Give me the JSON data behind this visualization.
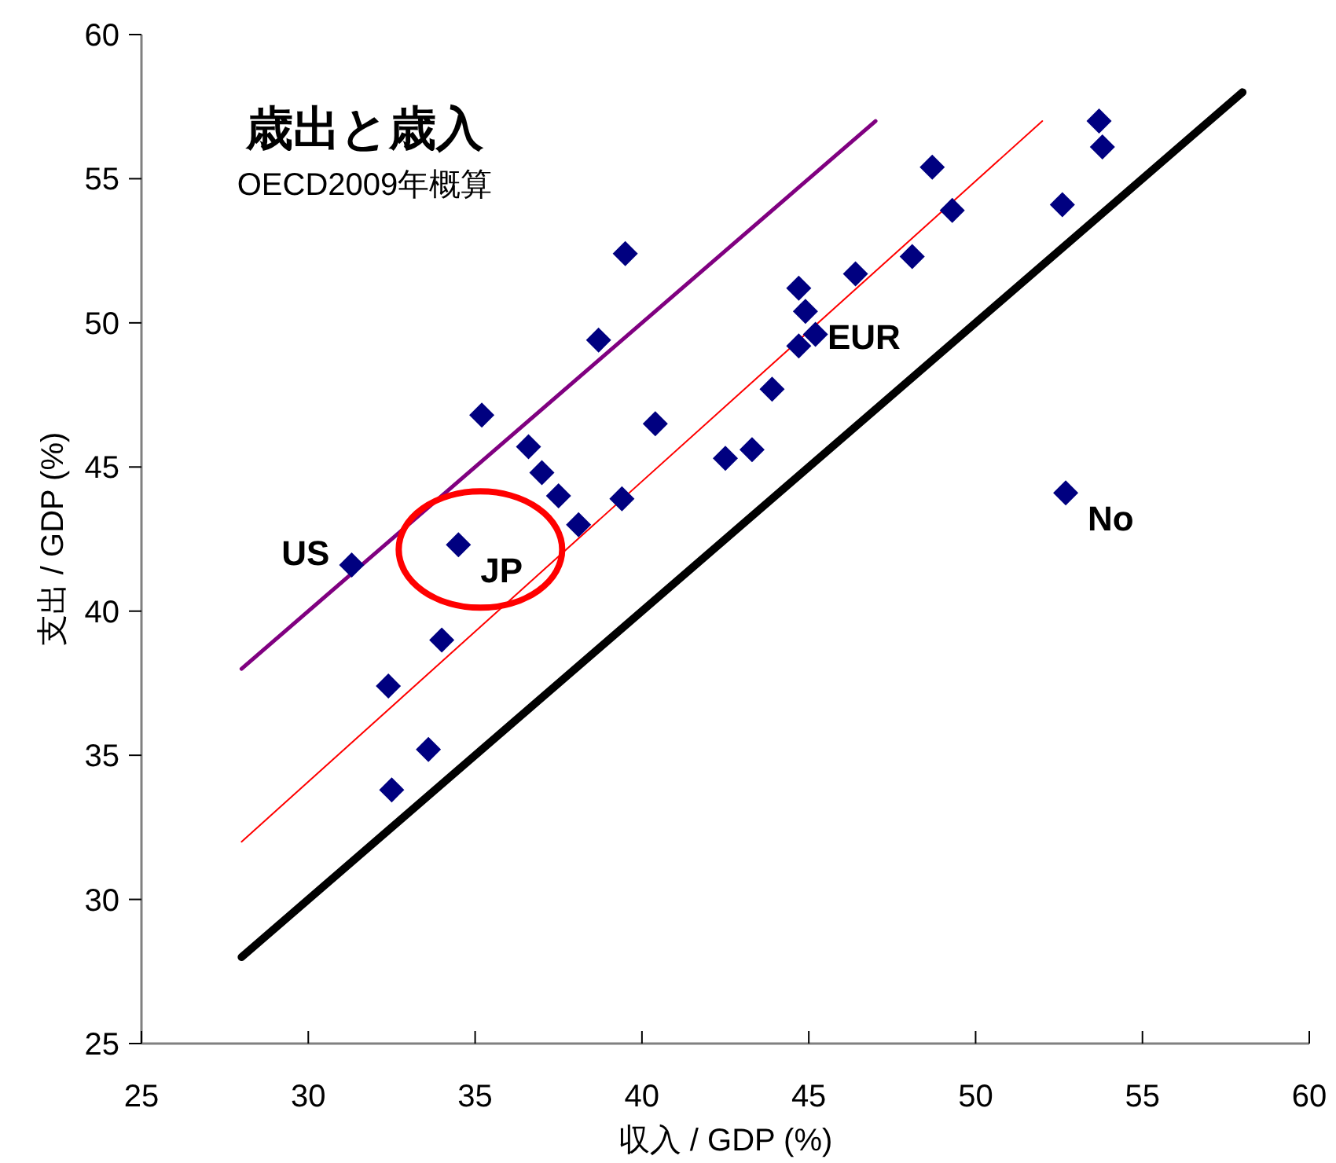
{
  "chart_data": {
    "type": "scatter",
    "title": "歳出と歳入",
    "subtitle": "OECD2009年概算",
    "xlabel": "収入 / GDP (%)",
    "ylabel": "支出 / GDP (%)",
    "xlim": [
      25,
      60
    ],
    "xticks": [
      25,
      30,
      35,
      40,
      45,
      50,
      55,
      60
    ],
    "ylim": [
      25,
      60
    ],
    "yticks": [
      25,
      30,
      35,
      40,
      45,
      50,
      55,
      60
    ],
    "grid": false,
    "series": [
      {
        "type": "line",
        "color": "#000000",
        "x": [
          28,
          58
        ],
        "values": [
          28,
          58
        ]
      },
      {
        "type": "line",
        "color": "#800080",
        "x": [
          28,
          47
        ],
        "values": [
          38,
          57
        ]
      },
      {
        "type": "line",
        "color": "#ff0000",
        "x": [
          28,
          52
        ],
        "values": [
          32,
          57
        ]
      },
      {
        "marker": "diamond",
        "color": "#000080",
        "x": [
          31.3,
          34.5,
          32.4,
          34.0,
          33.6,
          32.5,
          35.2,
          36.6,
          37.0,
          37.5,
          38.1,
          38.7,
          39.5,
          39.4,
          40.4,
          42.5,
          43.3,
          43.9,
          44.7,
          44.9,
          44.7,
          45.2,
          46.4,
          48.1,
          49.3,
          48.7,
          52.6,
          53.7,
          53.8,
          52.7
        ],
        "values": [
          41.6,
          42.3,
          37.4,
          39.0,
          35.2,
          33.8,
          46.8,
          45.7,
          44.8,
          44.0,
          43.0,
          49.4,
          52.4,
          43.9,
          46.5,
          45.3,
          45.6,
          47.7,
          51.2,
          50.4,
          49.2,
          49.6,
          51.7,
          52.3,
          53.9,
          55.4,
          54.1,
          57.0,
          56.1,
          44.1
        ]
      }
    ],
    "annotations": [
      {
        "text": "US",
        "x": 31.3,
        "y": 41.6
      },
      {
        "text": "JP",
        "x": 34.5,
        "y": 42.3
      },
      {
        "text": "EUR",
        "x": 44.9,
        "y": 50.4
      },
      {
        "text": "No",
        "x": 52.7,
        "y": 44.1
      }
    ]
  }
}
